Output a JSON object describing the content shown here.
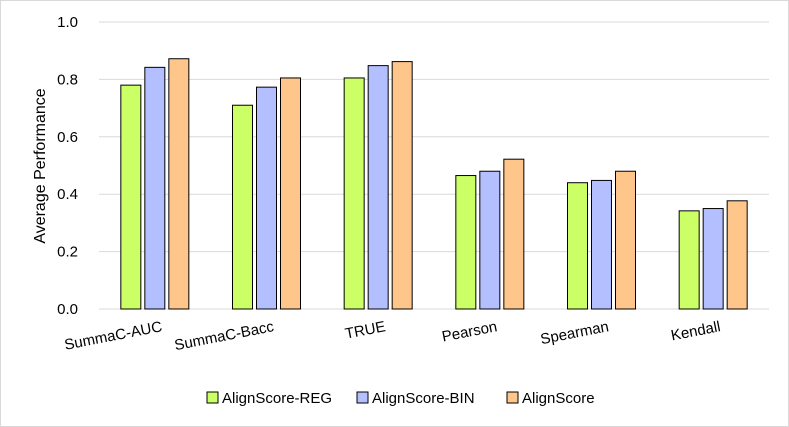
{
  "colors": {
    "grid": "#d9d9d9",
    "axis": "#d9d9d9",
    "bar_stroke": "#000000"
  },
  "chart_data": {
    "type": "bar",
    "title": "",
    "xlabel": "",
    "ylabel": "Average Performance",
    "ylim": [
      0.0,
      1.0
    ],
    "yticks": [
      "0.0",
      "0.2",
      "0.4",
      "0.6",
      "0.8",
      "1.0"
    ],
    "grid": true,
    "legend_position": "bottom",
    "categories": [
      "SummaC-AUC",
      "SummaC-Bacc",
      "TRUE",
      "Pearson",
      "Spearman",
      "Kendall"
    ],
    "series": [
      {
        "name": "AlignScore-REG",
        "color": "#ccff66",
        "values": [
          0.78,
          0.71,
          0.805,
          0.465,
          0.44,
          0.342
        ]
      },
      {
        "name": "AlignScore-BIN",
        "color": "#b4bfff",
        "values": [
          0.842,
          0.773,
          0.848,
          0.48,
          0.448,
          0.35
        ]
      },
      {
        "name": "AlignScore",
        "color": "#ffc68c",
        "values": [
          0.872,
          0.805,
          0.862,
          0.522,
          0.48,
          0.377
        ]
      }
    ]
  }
}
